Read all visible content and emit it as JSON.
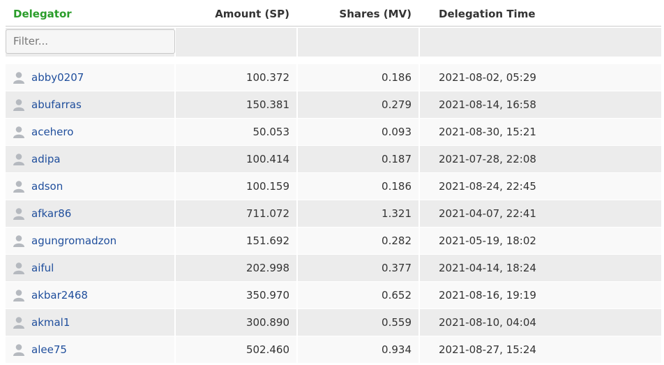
{
  "table": {
    "columns": [
      "Delegator",
      "Amount (SP)",
      "Shares (MV)",
      "Delegation Time"
    ],
    "filter_placeholder": "Filter...",
    "rows": [
      [
        "abby0207",
        "100.372",
        "0.186",
        "2021-08-02, 05:29"
      ],
      [
        "abufarras",
        "150.381",
        "0.279",
        "2021-08-14, 16:58"
      ],
      [
        "acehero",
        "50.053",
        "0.093",
        "2021-08-30, 15:21"
      ],
      [
        "adipa",
        "100.414",
        "0.187",
        "2021-07-28, 22:08"
      ],
      [
        "adson",
        "100.159",
        "0.186",
        "2021-08-24, 22:45"
      ],
      [
        "afkar86",
        "711.072",
        "1.321",
        "2021-04-07, 22:41"
      ],
      [
        "agungromadzon",
        "151.692",
        "0.282",
        "2021-05-19, 18:02"
      ],
      [
        "aiful",
        "202.998",
        "0.377",
        "2021-04-14, 18:24"
      ],
      [
        "akbar2468",
        "350.970",
        "0.652",
        "2021-08-16, 19:19"
      ],
      [
        "akmal1",
        "300.890",
        "0.559",
        "2021-08-10, 04:04"
      ],
      [
        "alee75",
        "502.460",
        "0.934",
        "2021-08-27, 15:24"
      ]
    ]
  }
}
